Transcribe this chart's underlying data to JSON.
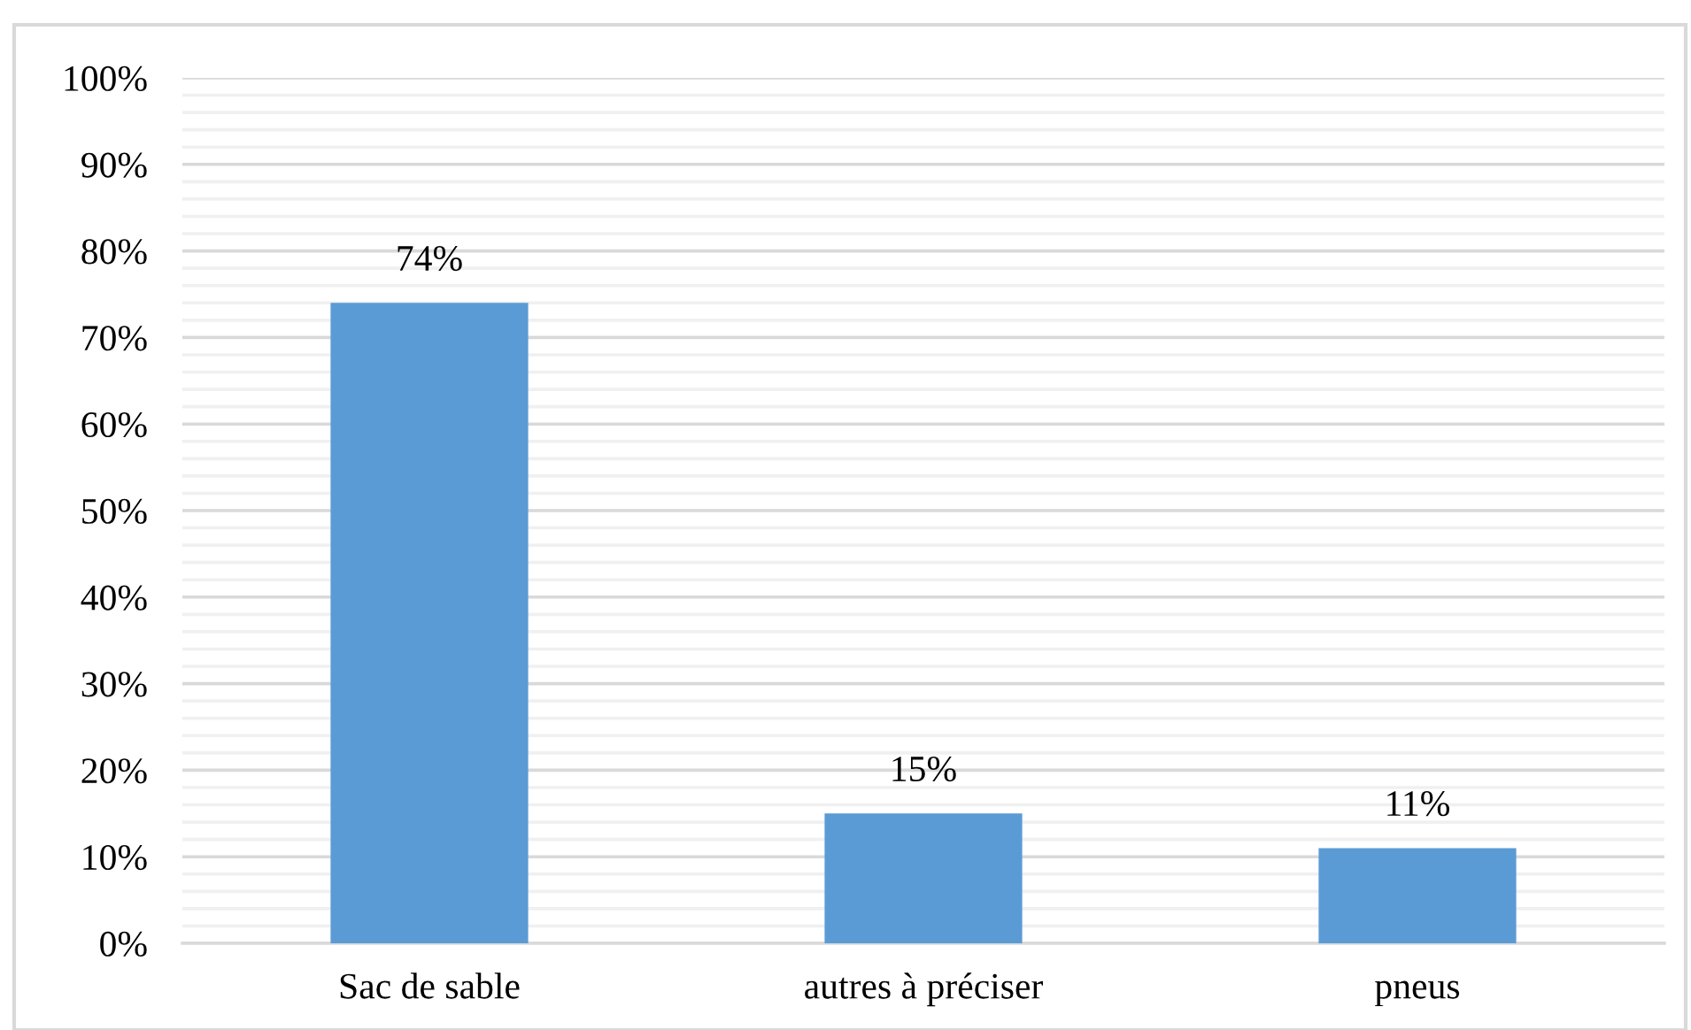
{
  "chart_data": {
    "type": "bar",
    "categories": [
      "Sac de sable",
      "autres à préciser",
      "pneus"
    ],
    "values": [
      74,
      15,
      11
    ],
    "color": "#5b9bd5",
    "value_labels": [
      "74%",
      "15%",
      "11%"
    ],
    "ylim": [
      0,
      100
    ],
    "yticks": [
      {
        "value": 0,
        "label": "0%"
      },
      {
        "value": 10,
        "label": "10%"
      },
      {
        "value": 20,
        "label": "20%"
      },
      {
        "value": 30,
        "label": "30%"
      },
      {
        "value": 40,
        "label": "40%"
      },
      {
        "value": 50,
        "label": "50%"
      },
      {
        "value": 60,
        "label": "60%"
      },
      {
        "value": 70,
        "label": "70%"
      },
      {
        "value": 80,
        "label": "80%"
      },
      {
        "value": 90,
        "label": "90%"
      },
      {
        "value": 100,
        "label": "100%"
      }
    ],
    "grid": "y"
  }
}
